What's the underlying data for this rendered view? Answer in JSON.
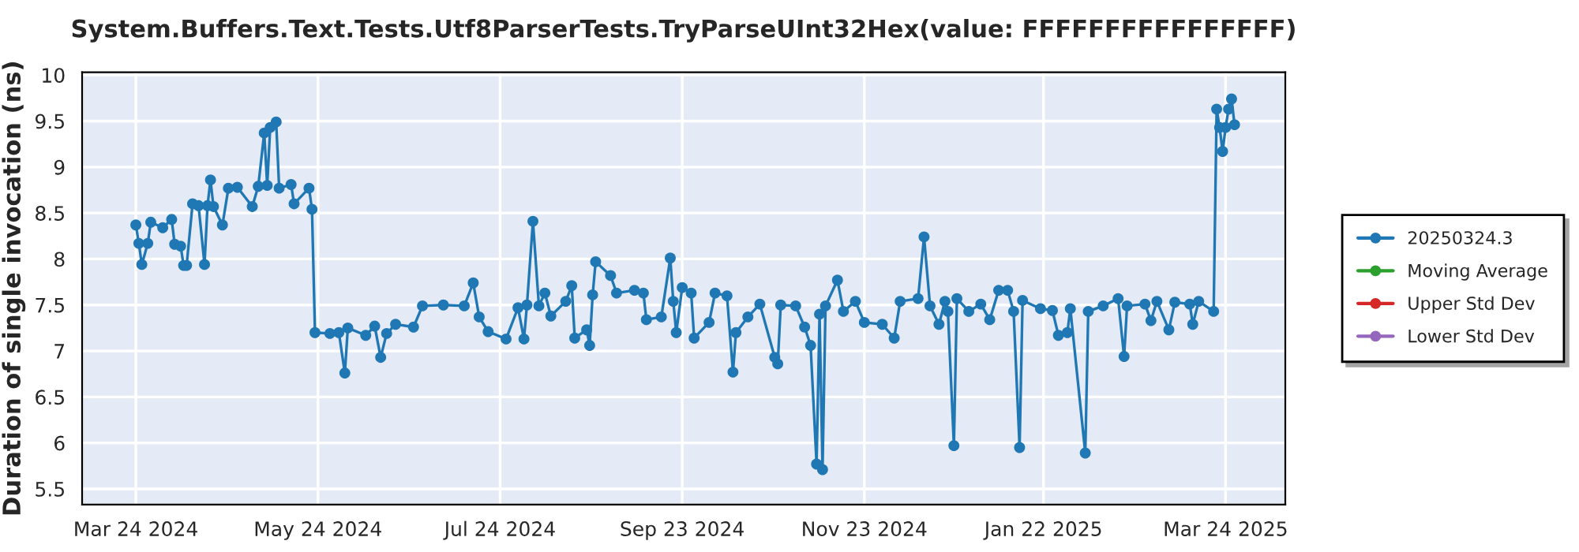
{
  "chart_data": {
    "type": "line",
    "title": "System.Buffers.Text.Tests.Utf8ParserTests.TryParseUInt32Hex(value: FFFFFFFFFFFFFFFF)",
    "ylabel": "Duration of single invocation (ns)",
    "x": [
      "2024-03-24",
      "2024-03-25",
      "2024-03-26",
      "2024-03-28",
      "2024-03-29",
      "2024-04-02",
      "2024-04-05",
      "2024-04-06",
      "2024-04-08",
      "2024-04-09",
      "2024-04-10",
      "2024-04-12",
      "2024-04-14",
      "2024-04-16",
      "2024-04-17",
      "2024-04-18",
      "2024-04-19",
      "2024-04-22",
      "2024-04-24",
      "2024-04-27",
      "2024-05-02",
      "2024-05-04",
      "2024-05-06",
      "2024-05-07",
      "2024-05-08",
      "2024-05-10",
      "2024-05-11",
      "2024-05-15",
      "2024-05-16",
      "2024-05-21",
      "2024-05-22",
      "2024-05-23",
      "2024-05-28",
      "2024-05-31",
      "2024-06-02",
      "2024-06-03",
      "2024-06-09",
      "2024-06-12",
      "2024-06-14",
      "2024-06-16",
      "2024-06-19",
      "2024-06-25",
      "2024-06-28",
      "2024-07-05",
      "2024-07-12",
      "2024-07-15",
      "2024-07-17",
      "2024-07-20",
      "2024-07-26",
      "2024-07-30",
      "2024-08-01",
      "2024-08-02",
      "2024-08-04",
      "2024-08-06",
      "2024-08-08",
      "2024-08-10",
      "2024-08-15",
      "2024-08-17",
      "2024-08-18",
      "2024-08-22",
      "2024-08-23",
      "2024-08-24",
      "2024-08-25",
      "2024-08-30",
      "2024-09-01",
      "2024-09-07",
      "2024-09-10",
      "2024-09-11",
      "2024-09-16",
      "2024-09-19",
      "2024-09-20",
      "2024-09-21",
      "2024-09-23",
      "2024-09-26",
      "2024-09-27",
      "2024-10-02",
      "2024-10-04",
      "2024-10-08",
      "2024-10-10",
      "2024-10-11",
      "2024-10-15",
      "2024-10-19",
      "2024-10-24",
      "2024-10-25",
      "2024-10-26",
      "2024-10-31",
      "2024-11-03",
      "2024-11-05",
      "2024-11-07",
      "2024-11-08",
      "2024-11-09",
      "2024-11-10",
      "2024-11-14",
      "2024-11-16",
      "2024-11-20",
      "2024-11-23",
      "2024-11-29",
      "2024-12-03",
      "2024-12-05",
      "2024-12-11",
      "2024-12-13",
      "2024-12-15",
      "2024-12-18",
      "2024-12-20",
      "2024-12-21",
      "2024-12-23",
      "2024-12-24",
      "2024-12-28",
      "2025-01-01",
      "2025-01-04",
      "2025-01-07",
      "2025-01-10",
      "2025-01-12",
      "2025-01-14",
      "2025-01-15",
      "2025-01-21",
      "2025-01-25",
      "2025-01-27",
      "2025-01-30",
      "2025-01-31",
      "2025-02-05",
      "2025-02-06",
      "2025-02-11",
      "2025-02-16",
      "2025-02-18",
      "2025-02-19",
      "2025-02-25",
      "2025-02-27",
      "2025-03-01",
      "2025-03-05",
      "2025-03-07",
      "2025-03-12",
      "2025-03-13",
      "2025-03-15",
      "2025-03-20",
      "2025-03-21",
      "2025-03-22",
      "2025-03-23",
      "2025-03-24",
      "2025-03-25",
      "2025-03-26",
      "2025-03-27"
    ],
    "series": [
      {
        "name": "20250324.3",
        "color": "#1f77b4",
        "values": [
          8.37,
          8.17,
          7.94,
          8.17,
          8.4,
          8.34,
          8.43,
          8.16,
          8.14,
          7.93,
          7.93,
          8.6,
          8.58,
          7.94,
          8.58,
          8.86,
          8.57,
          8.37,
          8.77,
          8.78,
          8.57,
          8.79,
          9.37,
          8.8,
          9.43,
          9.49,
          8.77,
          8.81,
          8.6,
          8.77,
          8.54,
          7.2,
          7.19,
          7.2,
          6.76,
          7.25,
          7.17,
          7.27,
          6.93,
          7.19,
          7.29,
          7.26,
          7.49,
          7.5,
          7.49,
          7.74,
          7.37,
          7.21,
          7.13,
          7.47,
          7.13,
          7.5,
          8.41,
          7.49,
          7.63,
          7.38,
          7.54,
          7.71,
          7.14,
          7.23,
          7.06,
          7.61,
          7.97,
          7.82,
          7.63,
          7.66,
          7.63,
          7.34,
          7.37,
          8.01,
          7.54,
          7.2,
          7.69,
          7.63,
          7.14,
          7.31,
          7.63,
          7.6,
          6.77,
          7.2,
          7.37,
          7.51,
          6.93,
          6.86,
          7.5,
          7.49,
          7.26,
          7.06,
          5.77,
          7.4,
          5.71,
          7.49,
          7.77,
          7.43,
          7.54,
          7.31,
          7.29,
          7.14,
          7.54,
          7.57,
          8.24,
          7.49,
          7.29,
          7.54,
          7.43,
          5.97,
          7.57,
          7.43,
          7.51,
          7.34,
          7.66,
          7.66,
          7.43,
          5.95,
          7.55,
          7.46,
          7.44,
          7.17,
          7.2,
          7.46,
          5.89,
          7.43,
          7.49,
          7.57,
          6.94,
          7.49,
          7.51,
          7.33,
          7.54,
          7.23,
          7.53,
          7.51,
          7.29,
          7.54,
          7.43,
          9.63,
          9.43,
          9.17,
          9.43,
          9.63,
          9.74,
          9.46
        ]
      },
      {
        "name": "Moving Average",
        "color": "#2ca02c",
        "values": [
          null,
          null,
          null,
          null,
          null,
          null,
          null,
          null,
          null,
          null,
          null,
          null,
          null,
          null,
          null,
          null,
          null,
          null,
          null,
          null,
          null,
          null,
          null,
          null,
          null,
          null,
          null,
          null,
          null,
          null,
          null,
          null,
          null,
          null,
          null,
          null,
          null,
          null,
          null,
          null,
          null,
          null,
          null,
          null,
          null,
          null,
          null,
          null,
          null,
          null,
          null,
          null,
          null,
          null,
          null,
          null,
          null,
          null,
          null,
          null,
          null,
          null,
          null,
          null,
          null,
          null,
          null,
          null,
          null,
          null,
          null,
          null,
          null,
          null,
          null,
          null,
          null,
          null,
          null,
          null,
          null,
          null,
          null,
          null,
          null,
          null,
          null,
          null,
          null,
          null,
          null,
          null,
          null,
          null,
          null,
          null,
          null,
          null,
          null,
          null,
          null,
          null,
          null,
          null,
          null,
          null,
          null,
          null,
          null,
          null,
          null,
          null,
          null,
          null,
          null,
          null,
          null,
          null,
          null,
          null,
          null,
          null,
          null,
          null,
          null,
          null,
          null,
          null,
          null,
          null,
          null,
          null,
          null,
          null,
          null,
          null,
          null,
          null,
          null,
          null,
          null,
          null
        ]
      },
      {
        "name": "Upper Std Dev",
        "color": "#d62728",
        "values": [
          null,
          null,
          null,
          null,
          null,
          null,
          null,
          null,
          null,
          null,
          null,
          null,
          null,
          null,
          null,
          null,
          null,
          null,
          null,
          null,
          null,
          null,
          null,
          null,
          null,
          null,
          null,
          null,
          null,
          null,
          null,
          null,
          null,
          null,
          null,
          null,
          null,
          null,
          null,
          null,
          null,
          null,
          null,
          null,
          null,
          null,
          null,
          null,
          null,
          null,
          null,
          null,
          null,
          null,
          null,
          null,
          null,
          null,
          null,
          null,
          null,
          null,
          null,
          null,
          null,
          null,
          null,
          null,
          null,
          null,
          null,
          null,
          null,
          null,
          null,
          null,
          null,
          null,
          null,
          null,
          null,
          null,
          null,
          null,
          null,
          null,
          null,
          null,
          null,
          null,
          null,
          null,
          null,
          null,
          null,
          null,
          null,
          null,
          null,
          null,
          null,
          null,
          null,
          null,
          null,
          null,
          null,
          null,
          null,
          null,
          null,
          null,
          null,
          null,
          null,
          null,
          null,
          null,
          null,
          null,
          null,
          null,
          null,
          null,
          null,
          null,
          null,
          null,
          null,
          null,
          null,
          null,
          null,
          null,
          null,
          null,
          null,
          null,
          null,
          null,
          null,
          null
        ]
      },
      {
        "name": "Lower Std Dev",
        "color": "#9467bd",
        "values": [
          null,
          null,
          null,
          null,
          null,
          null,
          null,
          null,
          null,
          null,
          null,
          null,
          null,
          null,
          null,
          null,
          null,
          null,
          null,
          null,
          null,
          null,
          null,
          null,
          null,
          null,
          null,
          null,
          null,
          null,
          null,
          null,
          null,
          null,
          null,
          null,
          null,
          null,
          null,
          null,
          null,
          null,
          null,
          null,
          null,
          null,
          null,
          null,
          null,
          null,
          null,
          null,
          null,
          null,
          null,
          null,
          null,
          null,
          null,
          null,
          null,
          null,
          null,
          null,
          null,
          null,
          null,
          null,
          null,
          null,
          null,
          null,
          null,
          null,
          null,
          null,
          null,
          null,
          null,
          null,
          null,
          null,
          null,
          null,
          null,
          null,
          null,
          null,
          null,
          null,
          null,
          null,
          null,
          null,
          null,
          null,
          null,
          null,
          null,
          null,
          null,
          null,
          null,
          null,
          null,
          null,
          null,
          null,
          null,
          null,
          null,
          null,
          null,
          null,
          null,
          null,
          null,
          null,
          null,
          null,
          null,
          null,
          null,
          null,
          null,
          null,
          null,
          null,
          null,
          null,
          null,
          null,
          null,
          null,
          null,
          null,
          null,
          null,
          null,
          null,
          null,
          null
        ]
      }
    ],
    "xlim": [
      "2024-03-06",
      "2025-04-13"
    ],
    "xticks": [
      {
        "value": "2024-03-24",
        "label": "Mar 24 2024"
      },
      {
        "value": "2024-05-24",
        "label": "May 24 2024"
      },
      {
        "value": "2024-07-24",
        "label": "Jul 24 2024"
      },
      {
        "value": "2024-09-23",
        "label": "Sep 23 2024"
      },
      {
        "value": "2024-11-23",
        "label": "Nov 23 2024"
      },
      {
        "value": "2025-01-22",
        "label": "Jan 22 2025"
      },
      {
        "value": "2025-03-24",
        "label": "Mar 24 2025"
      }
    ],
    "ylim": [
      5.33,
      10.03
    ],
    "yticks": [
      5.5,
      6,
      6.5,
      7,
      7.5,
      8,
      8.5,
      9,
      9.5,
      10
    ],
    "grid": true,
    "legend": "right",
    "marker": "circle",
    "line_style": "solid"
  }
}
